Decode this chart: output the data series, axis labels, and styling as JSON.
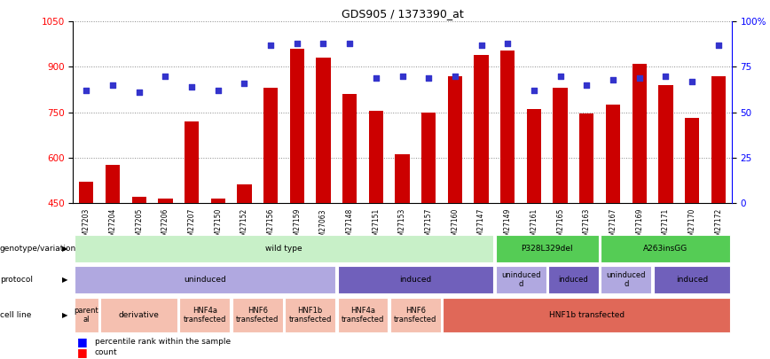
{
  "title": "GDS905 / 1373390_at",
  "samples": [
    "GSM27203",
    "GSM27204",
    "GSM27205",
    "GSM27206",
    "GSM27207",
    "GSM27150",
    "GSM27152",
    "GSM27156",
    "GSM27159",
    "GSM27063",
    "GSM27148",
    "GSM27151",
    "GSM27153",
    "GSM27157",
    "GSM27160",
    "GSM27147",
    "GSM27149",
    "GSM27161",
    "GSM27165",
    "GSM27163",
    "GSM27167",
    "GSM27169",
    "GSM27171",
    "GSM27170",
    "GSM27172"
  ],
  "counts": [
    520,
    575,
    470,
    465,
    720,
    465,
    510,
    830,
    960,
    930,
    810,
    755,
    610,
    750,
    870,
    940,
    955,
    760,
    830,
    745,
    775,
    910,
    840,
    730,
    870
  ],
  "percentile": [
    62,
    65,
    61,
    70,
    64,
    62,
    66,
    87,
    88,
    88,
    88,
    69,
    70,
    69,
    70,
    87,
    88,
    62,
    70,
    65,
    68,
    69,
    70,
    67,
    87
  ],
  "ylim_left": [
    450,
    1050
  ],
  "ylim_right": [
    0,
    100
  ],
  "yticks_left": [
    450,
    600,
    750,
    900,
    1050
  ],
  "yticks_right": [
    0,
    25,
    50,
    75,
    100
  ],
  "bar_color": "#cc0000",
  "dot_color": "#3333cc",
  "grid_color": "#888888",
  "genotype_row": {
    "label": "genotype/variation",
    "segments": [
      {
        "text": "wild type",
        "start": 0,
        "end": 16,
        "color": "#c8f0c8"
      },
      {
        "text": "P328L329del",
        "start": 16,
        "end": 20,
        "color": "#55cc55"
      },
      {
        "text": "A263insGG",
        "start": 20,
        "end": 25,
        "color": "#55cc55"
      }
    ]
  },
  "protocol_row": {
    "label": "protocol",
    "segments": [
      {
        "text": "uninduced",
        "start": 0,
        "end": 10,
        "color": "#b0a8e0"
      },
      {
        "text": "induced",
        "start": 10,
        "end": 16,
        "color": "#7060bb"
      },
      {
        "text": "uninduced\nd",
        "start": 16,
        "end": 18,
        "color": "#b0a8e0"
      },
      {
        "text": "induced",
        "start": 18,
        "end": 20,
        "color": "#7060bb"
      },
      {
        "text": "uninduced\nd",
        "start": 20,
        "end": 22,
        "color": "#b0a8e0"
      },
      {
        "text": "induced",
        "start": 22,
        "end": 25,
        "color": "#7060bb"
      }
    ]
  },
  "cellline_row": {
    "label": "cell line",
    "segments": [
      {
        "text": "parent\nal",
        "start": 0,
        "end": 1,
        "color": "#f5c0b0"
      },
      {
        "text": "derivative",
        "start": 1,
        "end": 4,
        "color": "#f5c0b0"
      },
      {
        "text": "HNF4a\ntransfected",
        "start": 4,
        "end": 6,
        "color": "#f5c0b0"
      },
      {
        "text": "HNF6\ntransfected",
        "start": 6,
        "end": 8,
        "color": "#f5c0b0"
      },
      {
        "text": "HNF1b\ntransfected",
        "start": 8,
        "end": 10,
        "color": "#f5c0b0"
      },
      {
        "text": "HNF4a\ntransfected",
        "start": 10,
        "end": 12,
        "color": "#f5c0b0"
      },
      {
        "text": "HNF6\ntransfected",
        "start": 12,
        "end": 14,
        "color": "#f5c0b0"
      },
      {
        "text": "HNF1b transfected",
        "start": 14,
        "end": 25,
        "color": "#e06858"
      }
    ]
  }
}
